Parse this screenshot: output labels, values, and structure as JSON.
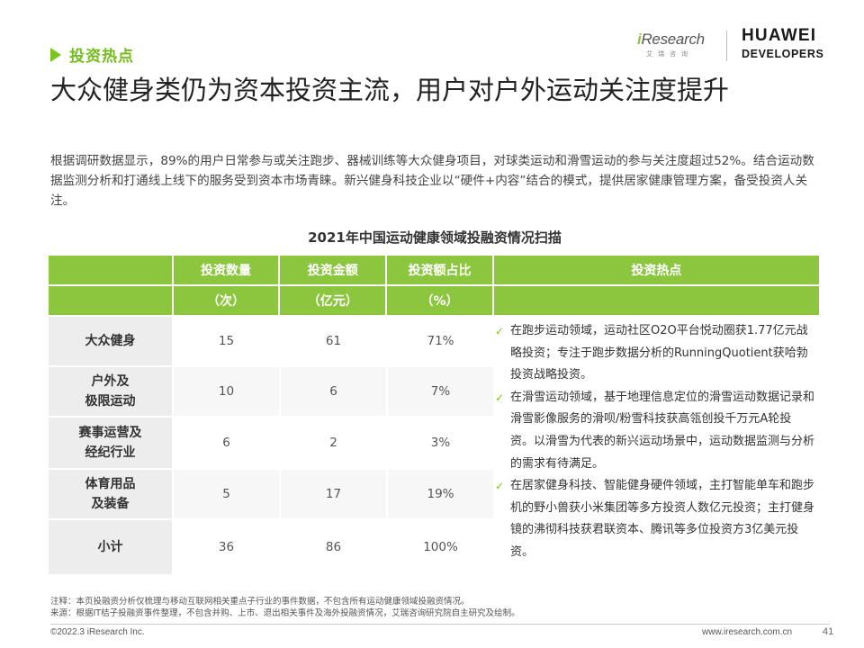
{
  "section_tag": "投资热点",
  "logos": {
    "iresearch_i": "i",
    "iresearch_word": "Research",
    "iresearch_sub": "艾瑞咨询",
    "huawei_line1": "HUAWEI",
    "huawei_line2": "DEVELOPERS"
  },
  "headline": "大众健身类仍为资本投资主流，用户对户外运动关注度提升",
  "intro": "根据调研数据显示，89%的用户日常参与或关注跑步、器械训练等大众健身项目，对球类运动和滑雪运动的参与关注度超过52%。结合运动数据监测分析和打通线上线下的服务受到资本市场青睐。新兴健身科技企业以“硬件+内容”结合的模式，提供居家健康管理方案，备受投资人关注。",
  "table": {
    "title": "2021年中国运动健康领域投融资情况扫描",
    "headers": [
      "投资数量",
      "投资金额",
      "投资额占比",
      "投资热点"
    ],
    "units": [
      "（次）",
      "（亿元）",
      "（%）"
    ],
    "rows": [
      {
        "label": "大众健身",
        "count": "15",
        "amount": "61",
        "share": "71%"
      },
      {
        "label": "户外及\n极限运动",
        "count": "10",
        "amount": "6",
        "share": "7%"
      },
      {
        "label": "赛事运营及\n经纪行业",
        "count": "6",
        "amount": "2",
        "share": "3%"
      },
      {
        "label": "体育用品\n及装备",
        "count": "5",
        "amount": "17",
        "share": "19%"
      },
      {
        "label": "小计",
        "count": "36",
        "amount": "86",
        "share": "100%"
      }
    ],
    "hotspots": [
      "在跑步运动领域，运动社区O2O平台悦动圈获1.77亿元战略投资；专注于跑步数据分析的RunningQuotient获哈勃投资战略投资。",
      "在滑雪运动领域，基于地理信息定位的滑雪运动数据记录和滑雪影像服务的滑呗/粉雪科技获高瓴创投千万元A轮投资。以滑雪为代表的新兴运动场景中，运动数据监测与分析的需求有待满足。",
      "在居家健身科技、智能健身硬件领域，主打智能单车和跑步机的野小兽获小米集团等多方投资人数亿元投资；主打健身镜的沸彻科技获君联资本、腾讯等多位投资方3亿美元投资。"
    ]
  },
  "notes": {
    "note": "注释：本页投融资分析仅梳理与移动互联网相关重点子行业的事件数据，不包含所有运动健康领域投融资情况。",
    "source": "来源：根据IT桔子投融资事件整理，不包含并购、上市、退出相关事件及海外投融资情况，艾瑞咨询研究院自主研究及绘制。"
  },
  "footer": {
    "copyright": "©2022.3 iResearch Inc.",
    "url": "www.iresearch.com.cn",
    "page": "41"
  },
  "colors": {
    "accent": "#8cc63f",
    "label_bg": "#ededed"
  }
}
